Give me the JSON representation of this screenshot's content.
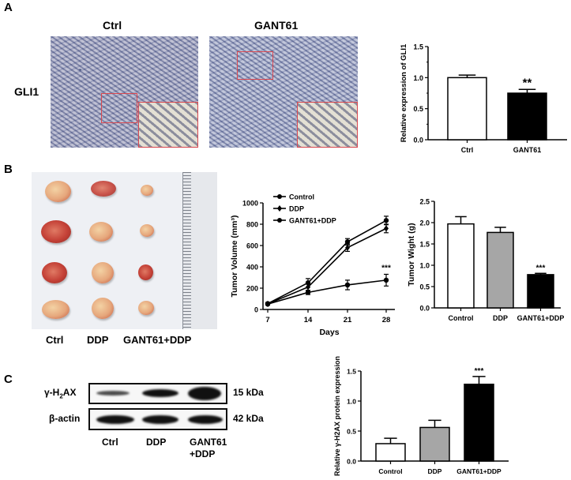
{
  "panels": {
    "A": {
      "letter": "A",
      "col_labels": [
        "Ctrl",
        "GANT61"
      ],
      "row_label": "GLI1"
    },
    "B": {
      "letter": "B",
      "photo_labels": [
        "Ctrl",
        "DDP",
        "GANT61+DDP"
      ]
    },
    "C": {
      "letter": "C",
      "blot_rows": [
        {
          "label_main": "γ-H",
          "label_sub": "2",
          "label_tail": "AX",
          "kda": "15 kDa"
        },
        {
          "label_main": "β-actin",
          "label_sub": "",
          "label_tail": "",
          "kda": "42 kDa"
        }
      ],
      "lane_labels": [
        "Ctrl",
        "DDP",
        "GANT61",
        "+DDP"
      ]
    }
  },
  "chart_data": [
    {
      "id": "A-gli1",
      "type": "bar",
      "title": "",
      "xlabel": "",
      "ylabel": "Relative expression of GLI1",
      "categories": [
        "Ctrl",
        "GANT61"
      ],
      "values": [
        1.0,
        0.75
      ],
      "errors": [
        0.04,
        0.06
      ],
      "colors": [
        "#ffffff",
        "#000000"
      ],
      "annotations": [
        "",
        "**"
      ],
      "ylim": [
        0,
        1.5
      ],
      "yticks": [
        "0.0",
        "0.5",
        "1.0",
        "1.5"
      ],
      "grid": false
    },
    {
      "id": "B-volume",
      "type": "line",
      "title": "",
      "xlabel": "Days",
      "ylabel": "Tumor Volume (mm³)",
      "x": [
        7,
        14,
        21,
        28
      ],
      "series": [
        {
          "name": "Control",
          "values": [
            55,
            250,
            635,
            835
          ],
          "errors": [
            10,
            40,
            30,
            40
          ]
        },
        {
          "name": "DDP",
          "values": [
            52,
            210,
            580,
            760
          ],
          "errors": [
            10,
            30,
            35,
            40
          ]
        },
        {
          "name": "GANT61+DDP",
          "values": [
            50,
            160,
            230,
            275
          ],
          "errors": [
            8,
            20,
            45,
            55
          ]
        }
      ],
      "annotations": [
        {
          "x": 28,
          "text": "***"
        }
      ],
      "ylim": [
        0,
        1000
      ],
      "yticks": [
        "0",
        "200",
        "400",
        "600",
        "800",
        "1000"
      ],
      "xticks": [
        "7",
        "14",
        "21",
        "28"
      ],
      "legend_position": "top-left",
      "grid": false
    },
    {
      "id": "B-weight",
      "type": "bar",
      "title": "",
      "xlabel": "",
      "ylabel": "Tumor Wight (g)",
      "categories": [
        "Control",
        "DDP",
        "GANT61+DDP"
      ],
      "values": [
        1.97,
        1.77,
        0.78
      ],
      "errors": [
        0.17,
        0.12,
        0.03
      ],
      "colors": [
        "#ffffff",
        "#a6a6a6",
        "#000000"
      ],
      "annotations": [
        "",
        "",
        "***"
      ],
      "ylim": [
        0,
        2.5
      ],
      "yticks": [
        "0.0",
        "0.5",
        "1.0",
        "1.5",
        "2.0",
        "2.5"
      ],
      "grid": false
    },
    {
      "id": "C-h2ax",
      "type": "bar",
      "title": "",
      "xlabel": "",
      "ylabel": "Relative γ-H2AX protein expression",
      "categories": [
        "Control",
        "DDP",
        "GANT61+DDP"
      ],
      "values": [
        0.29,
        0.56,
        1.28
      ],
      "errors": [
        0.09,
        0.12,
        0.13
      ],
      "colors": [
        "#ffffff",
        "#a6a6a6",
        "#000000"
      ],
      "annotations": [
        "",
        "",
        "***"
      ],
      "ylim": [
        0,
        1.5
      ],
      "yticks": [
        "0.0",
        "0.5",
        "1.0",
        "1.5"
      ],
      "grid": false
    }
  ]
}
